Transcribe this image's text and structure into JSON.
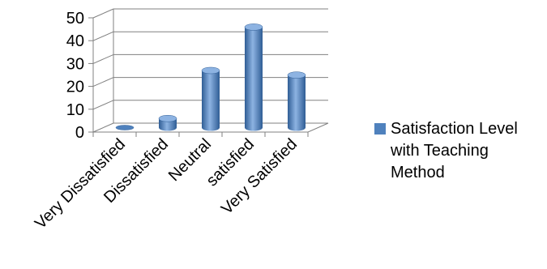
{
  "chart_data": {
    "type": "bar",
    "categories": [
      "Very Dissatisfied",
      "Dissatisfied",
      "Neutral",
      "satisfied",
      "Very Satisfied"
    ],
    "series": [
      {
        "name": "Satisfaction Level with Teaching Method",
        "values": [
          0,
          4,
          25,
          44,
          23
        ]
      }
    ],
    "ylim": [
      0,
      50
    ],
    "yticks": [
      0,
      10,
      20,
      30,
      40,
      50
    ],
    "grid": true,
    "legend": "right",
    "colors": {
      "bar": "#4f81bd",
      "bar_dark": "#2f5d95",
      "bar_light": "#8db3e2",
      "grid": "#808080",
      "axis": "#808080"
    }
  }
}
